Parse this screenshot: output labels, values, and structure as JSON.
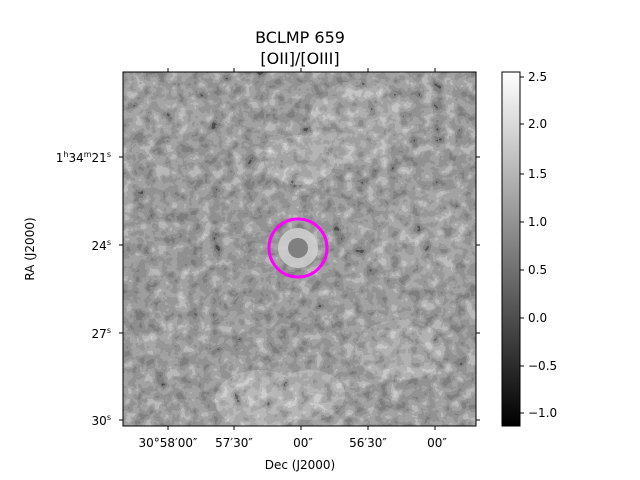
{
  "title": {
    "line1": "BCLMP 659",
    "line2": "[OII]/[OIII]"
  },
  "x_axis": {
    "label": "Dec (J2000)",
    "ticks": [
      "30°58′00″",
      "57′30″",
      "00″",
      "56′30″",
      "00″"
    ]
  },
  "y_axis": {
    "label": "RA (J2000)",
    "ticks": [
      {
        "h": "1",
        "m": "34",
        "s": "21",
        "full": true
      },
      {
        "s": "24"
      },
      {
        "s": "27"
      },
      {
        "s": "30"
      }
    ]
  },
  "colorbar": {
    "colormap": "gray",
    "ticks": [
      "2.5",
      "2.0",
      "1.5",
      "1.0",
      "0.5",
      "0.0",
      "−0.5",
      "−1.0"
    ],
    "range": [
      -1.15,
      2.6
    ]
  },
  "colors": {
    "aperture": "#ff00ff"
  }
}
